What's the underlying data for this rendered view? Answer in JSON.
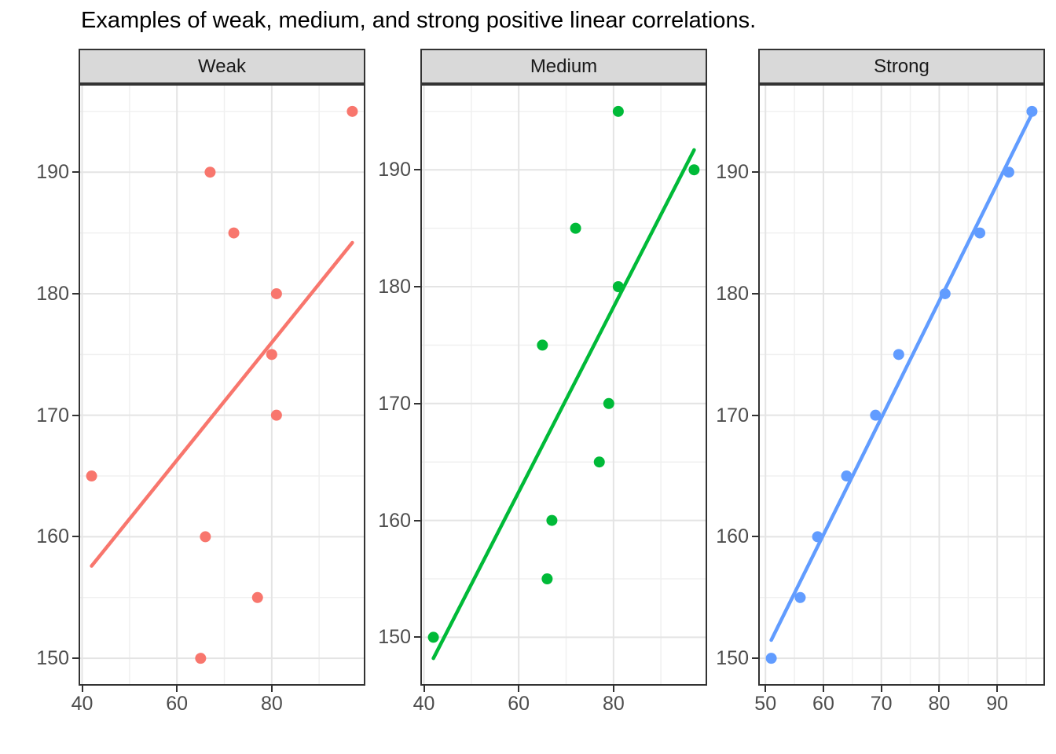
{
  "title": "Examples of weak, medium, and strong positive linear correlations.",
  "colors": {
    "weak_series": "#F8766D",
    "medium_series": "#00BA38",
    "strong_series": "#619CFF",
    "strip_background": "#D9D9D9",
    "strip_text": "#1A1A1A",
    "panel_border": "#333333",
    "panel_background": "#FFFFFF",
    "grid_major": "#E4E4E4",
    "grid_minor": "#F0F0F0",
    "axis_text": "#4D4D4D",
    "tick_mark": "#333333",
    "title_text": "#000000"
  },
  "chart_data": [
    {
      "type": "scatter",
      "facet": "Weak",
      "series_color": "#F8766D",
      "points": [
        [
          65,
          150
        ],
        [
          77,
          155
        ],
        [
          66,
          160
        ],
        [
          42,
          165
        ],
        [
          81,
          170
        ],
        [
          80,
          175
        ],
        [
          81,
          180
        ],
        [
          72,
          185
        ],
        [
          67,
          190
        ],
        [
          97,
          195
        ]
      ],
      "trend_line": {
        "x1": 42,
        "y1": 157.6,
        "x2": 97,
        "y2": 184.2
      },
      "x_ticks": [
        40,
        60,
        80
      ],
      "x_minor": [
        50,
        70,
        90
      ],
      "y_ticks": [
        150,
        160,
        170,
        180,
        190
      ],
      "y_minor": [
        155,
        165,
        175,
        185,
        195
      ],
      "xlim": [
        39.25,
        99.75
      ],
      "ylim": [
        147.75,
        197.25
      ]
    },
    {
      "type": "scatter",
      "facet": "Medium",
      "series_color": "#00BA38",
      "points": [
        [
          42,
          150
        ],
        [
          66,
          155
        ],
        [
          67,
          160
        ],
        [
          77,
          165
        ],
        [
          79,
          170
        ],
        [
          65,
          175
        ],
        [
          81,
          180
        ],
        [
          72,
          185
        ],
        [
          97,
          190
        ],
        [
          81,
          195
        ]
      ],
      "trend_line": {
        "x1": 42,
        "y1": 148.2,
        "x2": 97,
        "y2": 191.7
      },
      "x_ticks": [
        40,
        60,
        80
      ],
      "x_minor": [
        50,
        70,
        90
      ],
      "y_ticks": [
        150,
        160,
        170,
        180,
        190
      ],
      "y_minor": [
        155,
        165,
        175,
        185,
        195
      ],
      "xlim": [
        39.25,
        99.75
      ],
      "ylim": [
        145.86,
        197.34
      ]
    },
    {
      "type": "scatter",
      "facet": "Strong",
      "series_color": "#619CFF",
      "points": [
        [
          51,
          150
        ],
        [
          56,
          155
        ],
        [
          59,
          160
        ],
        [
          64,
          165
        ],
        [
          69,
          170
        ],
        [
          73,
          175
        ],
        [
          81,
          180
        ],
        [
          87,
          185
        ],
        [
          92,
          190
        ],
        [
          96,
          195
        ]
      ],
      "trend_line": {
        "x1": 51,
        "y1": 151.5,
        "x2": 96,
        "y2": 194.8
      },
      "x_ticks": [
        50,
        60,
        70,
        80,
        90
      ],
      "x_minor": [
        55,
        65,
        75,
        85,
        95
      ],
      "y_ticks": [
        150,
        160,
        170,
        180,
        190
      ],
      "y_minor": [
        155,
        165,
        175,
        185,
        195
      ],
      "xlim": [
        48.75,
        98.25
      ],
      "ylim": [
        147.75,
        197.25
      ]
    }
  ]
}
